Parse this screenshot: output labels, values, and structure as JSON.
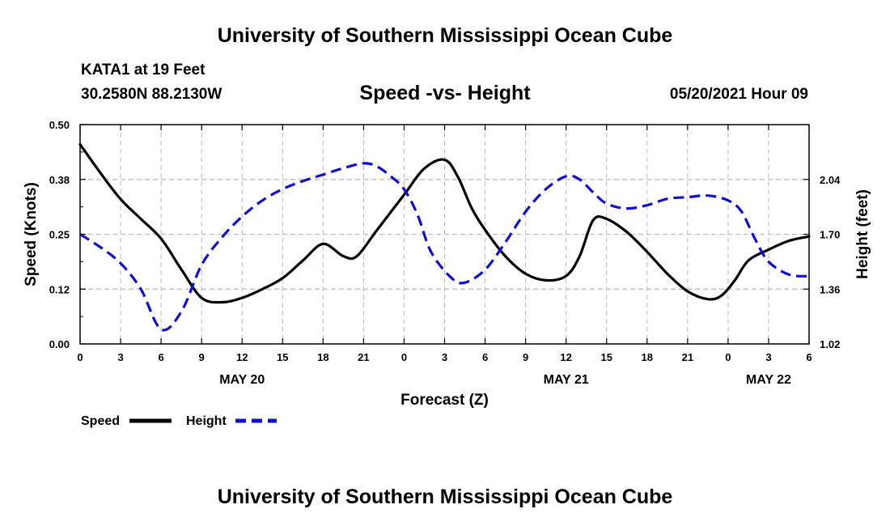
{
  "header": {
    "title": "University of Southern Mississippi Ocean Cube",
    "station": "KATA1 at 19 Feet",
    "coords": "30.2580N  88.2130W",
    "chart_title": "Speed -vs- Height",
    "timestamp": "05/20/2021 Hour 09"
  },
  "footer": {
    "title": "University of Southern Mississippi Ocean Cube"
  },
  "colors": {
    "speed": "#000000",
    "height": "#1010cc",
    "grid": "#b8b8b8"
  },
  "chart_data": {
    "type": "line",
    "title": "Speed -vs- Height",
    "xlabel": "Forecast (Z)",
    "ylabel": "Speed (Knots)",
    "y2label": "Height (feet)",
    "xlim": [
      0,
      54
    ],
    "ylim": [
      0,
      0.5
    ],
    "y2lim": [
      1.02,
      2.38
    ],
    "x_ticks": [
      0,
      3,
      6,
      9,
      12,
      15,
      18,
      21,
      24,
      27,
      30,
      33,
      36,
      39,
      42,
      45,
      48,
      51,
      54
    ],
    "x_tick_labels": [
      "0",
      "3",
      "6",
      "9",
      "12",
      "15",
      "18",
      "21",
      "0",
      "3",
      "6",
      "9",
      "12",
      "15",
      "18",
      "21",
      "0",
      "3",
      "6"
    ],
    "y_ticks": [
      0,
      0.125,
      0.25,
      0.375,
      0.5
    ],
    "y_tick_labels": [
      "0.00",
      "0.12",
      "0.25",
      "0.38",
      "0.50"
    ],
    "y2_ticks": [
      1.02,
      1.36,
      1.7,
      2.04
    ],
    "y2_tick_labels": [
      "1.02",
      "1.36",
      "1.70",
      "2.04"
    ],
    "date_labels": [
      {
        "x": 12,
        "label": "MAY 20"
      },
      {
        "x": 36,
        "label": "MAY 21"
      },
      {
        "x": 51,
        "label": "MAY 22"
      }
    ],
    "series": [
      {
        "name": "Speed",
        "axis": "left",
        "style": "solid",
        "x": [
          0,
          1.5,
          3,
          4.5,
          6,
          7.5,
          9,
          10.5,
          12,
          13.5,
          15,
          16.5,
          18,
          19.5,
          20.5,
          22,
          24,
          25.5,
          27,
          28,
          29,
          30,
          31.5,
          33,
          34.5,
          36,
          37,
          38,
          39,
          40.5,
          42,
          43.5,
          45,
          46.5,
          47.5,
          48.5,
          49.5,
          51,
          52.5,
          54
        ],
        "values": [
          0.455,
          0.39,
          0.33,
          0.285,
          0.24,
          0.17,
          0.105,
          0.095,
          0.105,
          0.125,
          0.15,
          0.19,
          0.228,
          0.2,
          0.2,
          0.26,
          0.34,
          0.4,
          0.42,
          0.38,
          0.31,
          0.26,
          0.2,
          0.16,
          0.145,
          0.155,
          0.2,
          0.282,
          0.285,
          0.255,
          0.21,
          0.16,
          0.12,
          0.102,
          0.11,
          0.145,
          0.19,
          0.215,
          0.235,
          0.245
        ]
      },
      {
        "name": "Height",
        "axis": "right",
        "style": "dashed",
        "x": [
          0,
          1.5,
          3,
          4.5,
          6,
          7.5,
          9,
          10.5,
          12,
          13.5,
          15,
          16.5,
          18,
          19.5,
          21,
          22,
          23,
          24,
          25,
          26,
          27.5,
          28.5,
          30,
          31.5,
          33,
          34.5,
          36,
          37,
          38,
          39,
          40.5,
          42,
          43.5,
          45,
          46.5,
          48,
          49,
          50,
          51,
          52.5,
          54
        ],
        "values": [
          1.7,
          1.62,
          1.52,
          1.36,
          1.11,
          1.22,
          1.51,
          1.68,
          1.81,
          1.91,
          1.98,
          2.03,
          2.07,
          2.11,
          2.14,
          2.12,
          2.06,
          1.98,
          1.82,
          1.59,
          1.43,
          1.4,
          1.48,
          1.65,
          1.84,
          1.98,
          2.06,
          2.04,
          1.96,
          1.89,
          1.86,
          1.88,
          1.92,
          1.93,
          1.94,
          1.91,
          1.84,
          1.67,
          1.53,
          1.45,
          1.44
        ]
      }
    ],
    "legend": [
      {
        "label": "Speed",
        "style": "solid"
      },
      {
        "label": "Height",
        "style": "dashed"
      }
    ]
  }
}
